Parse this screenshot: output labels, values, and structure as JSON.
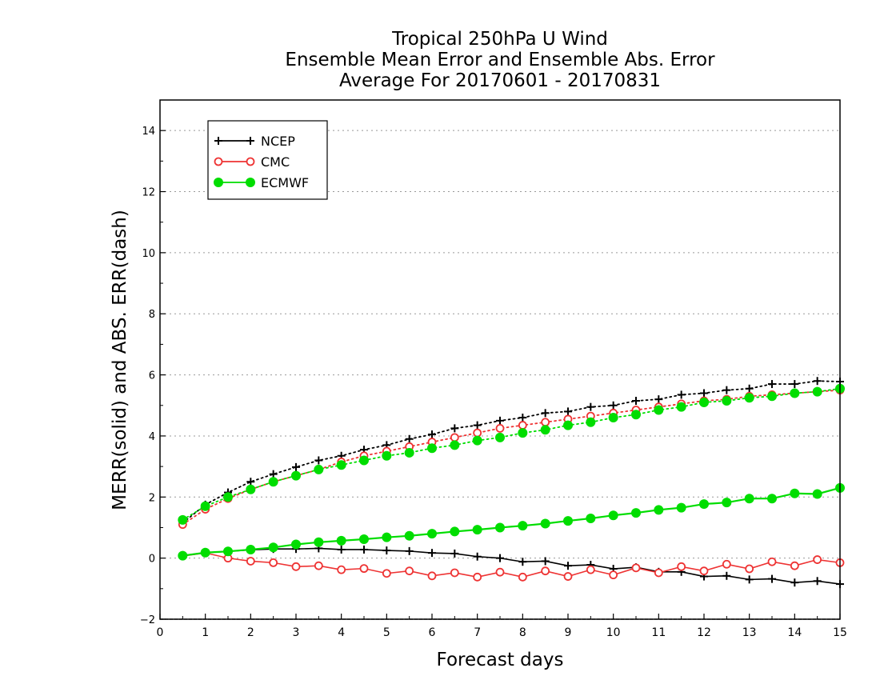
{
  "chart_data": {
    "type": "line",
    "title_lines": [
      "Tropical 250hPa U Wind",
      "Ensemble Mean Error and Ensemble Abs. Error",
      "Average For 20170601 - 20170831"
    ],
    "xlabel": "Forecast days",
    "ylabel": "MERR(solid) and ABS. ERR(dash)",
    "xlim": [
      0,
      15
    ],
    "ylim": [
      -2,
      15
    ],
    "x_ticks": [
      0,
      1,
      2,
      3,
      4,
      5,
      6,
      7,
      8,
      9,
      10,
      11,
      12,
      13,
      14,
      15
    ],
    "y_ticks": [
      -2,
      0,
      2,
      4,
      6,
      8,
      10,
      12,
      14
    ],
    "grid": "horizontal dotted",
    "legend_position": "top-left",
    "x": [
      0.5,
      1,
      1.5,
      2,
      2.5,
      3,
      3.5,
      4,
      4.5,
      5,
      5.5,
      6,
      6.5,
      7,
      7.5,
      8,
      8.5,
      9,
      9.5,
      10,
      10.5,
      11,
      11.5,
      12,
      12.5,
      13,
      13.5,
      14,
      14.5,
      15
    ],
    "series": [
      {
        "name": "NCEP",
        "color": "#000000",
        "marker": "plus",
        "merr": [
          0.08,
          0.18,
          0.22,
          0.27,
          0.3,
          0.3,
          0.32,
          0.28,
          0.28,
          0.25,
          0.23,
          0.17,
          0.15,
          0.05,
          0.0,
          -0.12,
          -0.1,
          -0.25,
          -0.22,
          -0.35,
          -0.3,
          -0.45,
          -0.45,
          -0.6,
          -0.58,
          -0.7,
          -0.68,
          -0.8,
          -0.75,
          -0.85
        ],
        "abs_err": [
          1.15,
          1.75,
          2.15,
          2.5,
          2.75,
          2.98,
          3.2,
          3.35,
          3.55,
          3.7,
          3.9,
          4.05,
          4.25,
          4.35,
          4.5,
          4.6,
          4.75,
          4.8,
          4.95,
          5.0,
          5.15,
          5.2,
          5.35,
          5.4,
          5.5,
          5.55,
          5.7,
          5.7,
          5.8,
          5.78
        ]
      },
      {
        "name": "CMC",
        "color": "#ee3333",
        "marker": "circle",
        "merr": [
          0.07,
          0.17,
          0.0,
          -0.1,
          -0.15,
          -0.28,
          -0.25,
          -0.38,
          -0.34,
          -0.5,
          -0.42,
          -0.58,
          -0.48,
          -0.62,
          -0.46,
          -0.62,
          -0.42,
          -0.6,
          -0.38,
          -0.55,
          -0.32,
          -0.48,
          -0.28,
          -0.42,
          -0.2,
          -0.35,
          -0.12,
          -0.25,
          -0.05,
          -0.15
        ],
        "abs_err": [
          1.1,
          1.6,
          1.95,
          2.25,
          2.5,
          2.7,
          2.9,
          3.15,
          3.35,
          3.5,
          3.65,
          3.8,
          3.95,
          4.1,
          4.25,
          4.35,
          4.45,
          4.55,
          4.65,
          4.75,
          4.85,
          4.95,
          5.05,
          5.15,
          5.2,
          5.3,
          5.35,
          5.4,
          5.45,
          5.5
        ]
      },
      {
        "name": "ECMWF",
        "color": "#00dd00",
        "marker": "dot",
        "merr": [
          0.08,
          0.18,
          0.22,
          0.28,
          0.35,
          0.45,
          0.52,
          0.57,
          0.62,
          0.68,
          0.73,
          0.8,
          0.87,
          0.93,
          1.0,
          1.06,
          1.13,
          1.22,
          1.3,
          1.4,
          1.48,
          1.58,
          1.65,
          1.77,
          1.82,
          1.95,
          1.95,
          2.12,
          2.1,
          2.3
        ],
        "abs_err": [
          1.25,
          1.7,
          2.0,
          2.25,
          2.5,
          2.7,
          2.9,
          3.05,
          3.2,
          3.35,
          3.45,
          3.6,
          3.7,
          3.85,
          3.95,
          4.1,
          4.2,
          4.35,
          4.45,
          4.6,
          4.7,
          4.85,
          4.95,
          5.1,
          5.15,
          5.25,
          5.3,
          5.4,
          5.45,
          5.55
        ]
      }
    ]
  }
}
